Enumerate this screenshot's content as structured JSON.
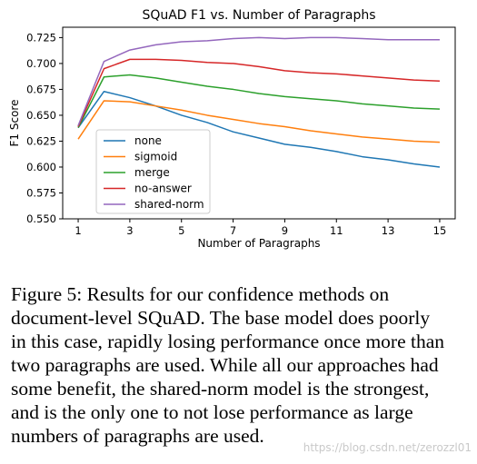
{
  "chart_data": {
    "type": "line",
    "title": "SQuAD F1 vs. Number of Paragraphs",
    "xlabel": "Number of Paragraphs",
    "ylabel": "F1 Score",
    "xlim": [
      0.4,
      15.6
    ],
    "ylim": [
      0.55,
      0.735
    ],
    "xticks": [
      1,
      3,
      5,
      7,
      9,
      11,
      13,
      15
    ],
    "yticks": [
      0.55,
      0.575,
      0.6,
      0.625,
      0.65,
      0.675,
      0.7,
      0.725
    ],
    "ytick_labels": [
      "0.550",
      "0.575",
      "0.600",
      "0.625",
      "0.650",
      "0.675",
      "0.700",
      "0.725"
    ],
    "legend": "lower-left",
    "grid": false,
    "x": [
      1,
      2,
      3,
      4,
      5,
      6,
      7,
      8,
      9,
      10,
      11,
      12,
      13,
      14,
      15
    ],
    "series": [
      {
        "name": "none",
        "color": "#1f77b4",
        "values": [
          0.638,
          0.673,
          0.667,
          0.659,
          0.65,
          0.643,
          0.634,
          0.628,
          0.622,
          0.619,
          0.615,
          0.61,
          0.607,
          0.603,
          0.6
        ]
      },
      {
        "name": "sigmoid",
        "color": "#ff7f0e",
        "values": [
          0.627,
          0.664,
          0.663,
          0.659,
          0.655,
          0.65,
          0.646,
          0.642,
          0.639,
          0.635,
          0.632,
          0.629,
          0.627,
          0.625,
          0.624
        ]
      },
      {
        "name": "merge",
        "color": "#2ca02c",
        "values": [
          0.638,
          0.687,
          0.689,
          0.686,
          0.682,
          0.678,
          0.675,
          0.671,
          0.668,
          0.666,
          0.664,
          0.661,
          0.659,
          0.657,
          0.656
        ]
      },
      {
        "name": "no-answer",
        "color": "#d62728",
        "values": [
          0.639,
          0.695,
          0.704,
          0.704,
          0.703,
          0.701,
          0.7,
          0.697,
          0.693,
          0.691,
          0.69,
          0.688,
          0.686,
          0.684,
          0.683
        ]
      },
      {
        "name": "shared-norm",
        "color": "#9467bd",
        "values": [
          0.64,
          0.702,
          0.713,
          0.718,
          0.721,
          0.722,
          0.724,
          0.725,
          0.724,
          0.725,
          0.725,
          0.724,
          0.723,
          0.723,
          0.723
        ]
      }
    ]
  },
  "caption": {
    "lines": [
      "Figure 5:  Results for our confidence methods on",
      "document-level SQuAD. The base model does poorly",
      "in this case, rapidly losing performance once more than",
      "two paragraphs are used. While all our approaches had",
      "some benefit, the shared-norm model is the strongest,",
      "and is the only one to not lose performance as large",
      "numbers of paragraphs are used."
    ]
  },
  "watermark": "https://blog.csdn.net/zerozzl01"
}
